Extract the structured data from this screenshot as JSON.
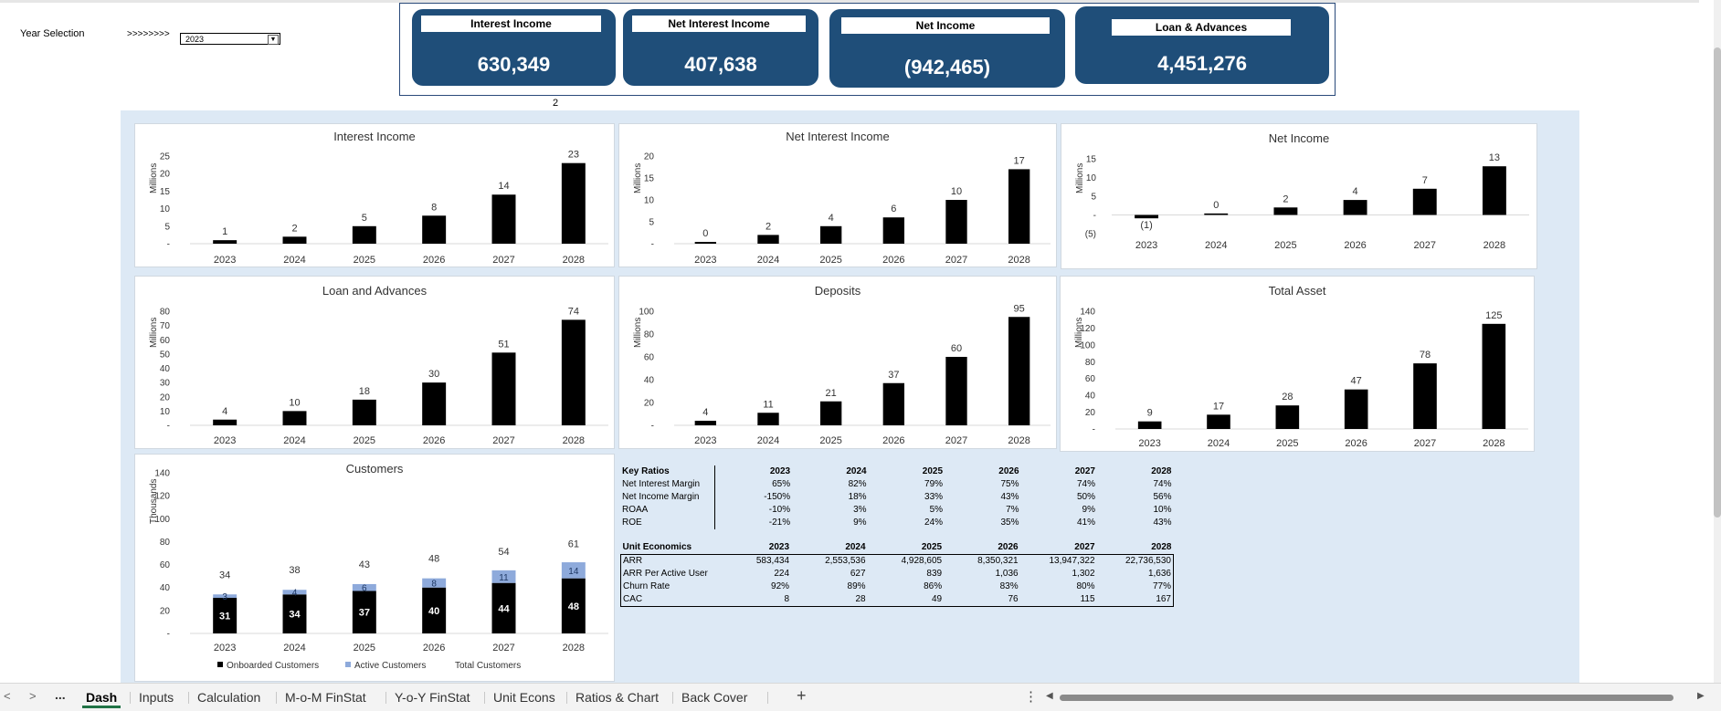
{
  "controls": {
    "year_label": "Year Selection",
    "arrows": ">>>>>>>>",
    "year_value": "2023",
    "marker": "2"
  },
  "kpis": [
    {
      "title": "Interest Income",
      "value": "630,349"
    },
    {
      "title": "Net Interest Income",
      "value": "407,638"
    },
    {
      "title": "Net Income",
      "value": "(942,465)"
    },
    {
      "title": "Loan & Advances",
      "value": "4,451,276"
    }
  ],
  "colors": {
    "kpi_bg": "#1f4e79",
    "dash_bg": "#dde9f5",
    "bar": "#000000",
    "active": "#8eaadb",
    "tab_accent": "#217346"
  },
  "chart_data": [
    {
      "type": "bar",
      "title": "Interest Income",
      "ylabel": "Millions",
      "categories": [
        "2023",
        "2024",
        "2025",
        "2026",
        "2027",
        "2028"
      ],
      "values": [
        1,
        2,
        5,
        8,
        14,
        23
      ],
      "labels": [
        "1",
        "2",
        "5",
        "8",
        "14",
        "23"
      ],
      "ticks": [
        "25",
        "20",
        "15",
        "10",
        "5",
        "-"
      ],
      "ylim": [
        0,
        25
      ]
    },
    {
      "type": "bar",
      "title": "Net Interest Income",
      "ylabel": "Millions",
      "categories": [
        "2023",
        "2024",
        "2025",
        "2026",
        "2027",
        "2028"
      ],
      "values": [
        0.4,
        2,
        4,
        6,
        10,
        17
      ],
      "labels": [
        "0",
        "2",
        "4",
        "6",
        "10",
        "17"
      ],
      "ticks": [
        "20",
        "15",
        "10",
        "5",
        "-"
      ],
      "ylim": [
        0,
        20
      ]
    },
    {
      "type": "bar",
      "title": "Net Income",
      "ylabel": "Millions",
      "categories": [
        "2023",
        "2024",
        "2025",
        "2026",
        "2027",
        "2028"
      ],
      "values": [
        -0.9,
        0.4,
        2,
        4,
        7,
        13
      ],
      "labels": [
        "(1)",
        "0",
        "2",
        "4",
        "7",
        "13"
      ],
      "ticks": [
        "15",
        "10",
        "5",
        "-",
        "(5)"
      ],
      "ylim": [
        -5,
        15
      ]
    },
    {
      "type": "bar",
      "title": "Loan and Advances",
      "ylabel": "Millions",
      "categories": [
        "2023",
        "2024",
        "2025",
        "2026",
        "2027",
        "2028"
      ],
      "values": [
        4,
        10,
        18,
        30,
        51,
        74
      ],
      "labels": [
        "4",
        "10",
        "18",
        "30",
        "51",
        "74"
      ],
      "ticks": [
        "80",
        "70",
        "60",
        "50",
        "40",
        "30",
        "20",
        "10",
        "-"
      ],
      "ylim": [
        0,
        80
      ]
    },
    {
      "type": "bar",
      "title": "Deposits",
      "ylabel": "Millions",
      "categories": [
        "2023",
        "2024",
        "2025",
        "2026",
        "2027",
        "2028"
      ],
      "values": [
        4,
        11,
        21,
        37,
        60,
        95
      ],
      "labels": [
        "4",
        "11",
        "21",
        "37",
        "60",
        "95"
      ],
      "ticks": [
        "100",
        "80",
        "60",
        "40",
        "20",
        "-"
      ],
      "ylim": [
        0,
        100
      ]
    },
    {
      "type": "bar",
      "title": "Total Asset",
      "ylabel": "Millions",
      "categories": [
        "2023",
        "2024",
        "2025",
        "2026",
        "2027",
        "2028"
      ],
      "values": [
        9,
        17,
        28,
        47,
        78,
        125
      ],
      "labels": [
        "9",
        "17",
        "28",
        "47",
        "78",
        "125"
      ],
      "ticks": [
        "140",
        "120",
        "100",
        "80",
        "60",
        "40",
        "20",
        "-"
      ],
      "ylim": [
        0,
        140
      ]
    },
    {
      "type": "bar",
      "title": "Customers",
      "ylabel": "Thousands",
      "categories": [
        "2023",
        "2024",
        "2025",
        "2026",
        "2027",
        "2028"
      ],
      "ticks": [
        "140",
        "120",
        "100",
        "80",
        "60",
        "40",
        "20",
        "-"
      ],
      "ylim": [
        0,
        140
      ],
      "series": [
        {
          "name": "Onboarded Customers",
          "values": [
            31,
            34,
            37,
            40,
            44,
            48
          ]
        },
        {
          "name": "Active Customers",
          "values": [
            3,
            4,
            6,
            8,
            11,
            14
          ]
        },
        {
          "name": "Total Customers",
          "values": [
            34,
            38,
            43,
            48,
            54,
            61
          ]
        }
      ]
    }
  ],
  "key_ratios": {
    "header": [
      "Key Ratios",
      "2023",
      "2024",
      "2025",
      "2026",
      "2027",
      "2028"
    ],
    "rows": [
      [
        "Net Interest Margin",
        "65%",
        "82%",
        "79%",
        "75%",
        "74%",
        "74%"
      ],
      [
        "Net Income Margin",
        "-150%",
        "18%",
        "33%",
        "43%",
        "50%",
        "56%"
      ],
      [
        "ROAA",
        "-10%",
        "3%",
        "5%",
        "7%",
        "9%",
        "10%"
      ],
      [
        "ROE",
        "-21%",
        "9%",
        "24%",
        "35%",
        "41%",
        "43%"
      ]
    ]
  },
  "unit_economics": {
    "header": [
      "Unit Economics",
      "2023",
      "2024",
      "2025",
      "2026",
      "2027",
      "2028"
    ],
    "rows": [
      [
        "ARR",
        "583,434",
        "2,553,536",
        "4,928,605",
        "8,350,321",
        "13,947,322",
        "22,736,530"
      ],
      [
        "ARR Per Active User",
        "224",
        "627",
        "839",
        "1,036",
        "1,302",
        "1,636"
      ],
      [
        "Churn Rate",
        "92%",
        "89%",
        "86%",
        "83%",
        "80%",
        "77%"
      ],
      [
        "CAC",
        "8",
        "28",
        "49",
        "76",
        "115",
        "167"
      ]
    ]
  },
  "tabs": [
    "Dash",
    "Inputs",
    "Calculation",
    "M-o-M FinStat",
    "Y-o-Y FinStat",
    "Unit Econs",
    "Ratios & Chart",
    "Back Cover"
  ],
  "tabbar": {
    "nav_prev": "<",
    "nav_next": ">",
    "more": "...",
    "add": "+",
    "options": "⋮",
    "scroll_left": "◀",
    "scroll_right": "▶"
  }
}
